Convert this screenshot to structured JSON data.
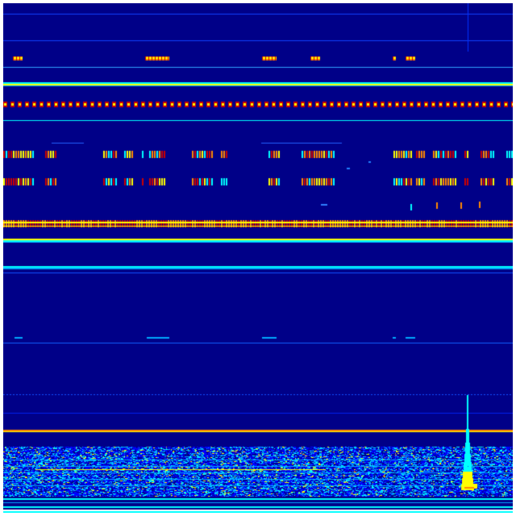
{
  "spectrogram": {
    "colormap": "jet",
    "colors": {
      "background": "#000088",
      "low": "#0000ff",
      "mid_low": "#00aaff",
      "mid": "#00ffff",
      "mid_high": "#ffff00",
      "high": "#ff8800",
      "peak": "#cc0000"
    }
  }
}
